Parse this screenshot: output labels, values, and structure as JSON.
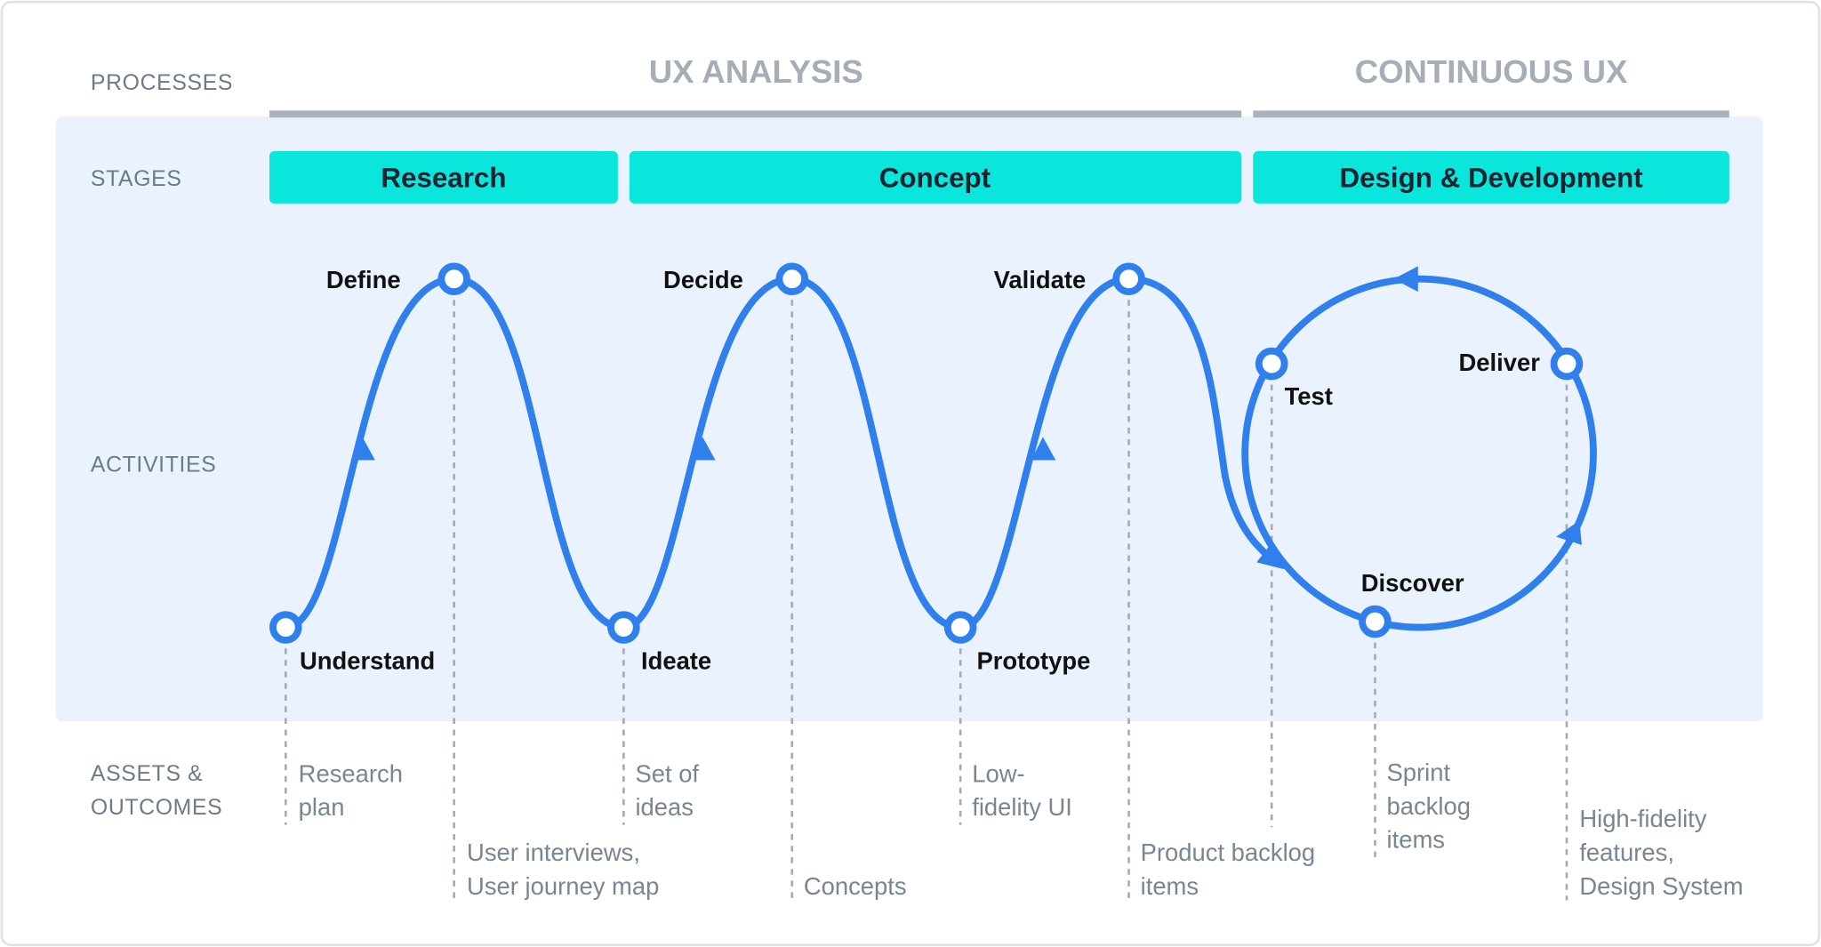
{
  "rows": {
    "processes": "PROCESSES",
    "stages": "STAGES",
    "activities": "ACTIVITIES",
    "assets_line1": "ASSETS &",
    "assets_line2": "OUTCOMES"
  },
  "processes": [
    "UX ANALYSIS",
    "CONTINUOUS UX"
  ],
  "stages": [
    "Research",
    "Concept",
    "Design & Development"
  ],
  "activities": {
    "understand": "Understand",
    "define": "Define",
    "ideate": "Ideate",
    "decide": "Decide",
    "prototype": "Prototype",
    "validate": "Validate",
    "test": "Test",
    "deliver": "Deliver",
    "discover": "Discover"
  },
  "outcomes": {
    "research_plan": [
      "Research",
      "plan"
    ],
    "interviews": [
      "User interviews,",
      "User journey map"
    ],
    "ideas": [
      "Set of",
      "ideas"
    ],
    "concepts": [
      "Concepts"
    ],
    "lowfi": [
      "Low-",
      "fidelity UI"
    ],
    "product_backlog": [
      "Product backlog",
      "items"
    ],
    "sprint_backlog": [
      "Sprint",
      "backlog",
      "items"
    ],
    "hifi": [
      "High-fidelity",
      "features,",
      "Design System"
    ]
  },
  "colors": {
    "accent": "#2f80ed",
    "stage": "#0ae6dc",
    "panel": "#eaf2fd",
    "process_bar": "#aab2bb"
  }
}
